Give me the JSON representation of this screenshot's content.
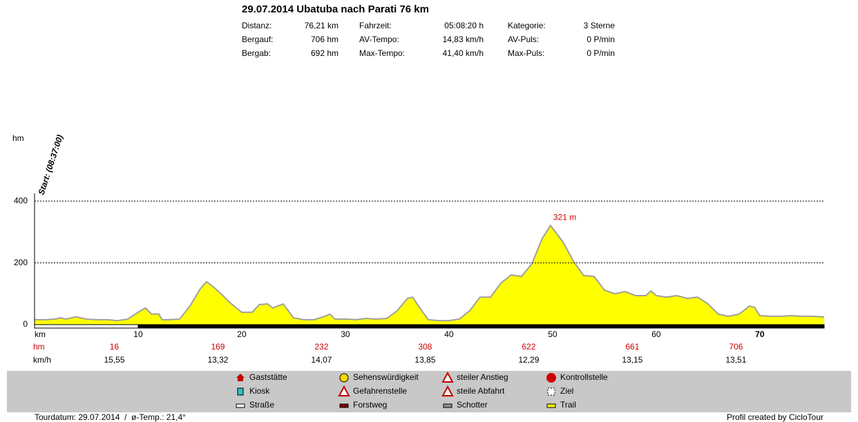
{
  "header": {
    "title": "29.07.2014 Ubatuba nach Parati 76 km",
    "stats": [
      [
        [
          "Distanz:",
          "76,21 km"
        ],
        [
          "Fahrzeit:",
          "05:08:20 h"
        ],
        [
          "Kategorie:",
          "3 Sterne"
        ]
      ],
      [
        [
          "Bergauf:",
          "706 hm"
        ],
        [
          "AV-Tempo:",
          "14,83 km/h"
        ],
        [
          "AV-Puls:",
          "0 P/min"
        ]
      ],
      [
        [
          "Bergab:",
          "692 hm"
        ],
        [
          "Max-Tempo:",
          "41,40 km/h"
        ],
        [
          "Max-Puls:",
          "0 P/min"
        ]
      ]
    ]
  },
  "chart_data": {
    "type": "area",
    "y_label": "hm",
    "x_label": "km",
    "start_label": "Start: (08:37:00)",
    "peak_annotation": "321 m",
    "color": "#ffff00",
    "line_color": "#a0a0a0",
    "x": [
      0,
      1,
      2,
      2.5,
      3,
      4,
      5,
      6,
      7,
      8,
      9,
      10,
      10.7,
      11.3,
      12,
      12.3,
      13,
      14,
      15,
      16,
      16.6,
      17.3,
      18,
      19,
      20,
      21,
      21.7,
      22.5,
      23,
      24,
      25,
      26,
      27,
      28,
      28.5,
      29,
      30,
      31,
      32,
      33,
      34,
      35,
      36,
      36.5,
      37,
      38,
      39,
      40,
      41,
      42,
      43,
      44,
      45,
      46,
      47,
      48,
      49,
      49.8,
      51,
      52,
      53,
      54,
      55,
      56,
      57,
      58,
      59,
      59.5,
      60,
      61,
      62,
      63,
      64,
      65,
      66,
      67,
      68,
      69,
      69.5,
      70,
      71,
      72,
      73,
      74,
      75,
      76.21
    ],
    "values": [
      16,
      16,
      18,
      22,
      18,
      25,
      18,
      16,
      16,
      13,
      18,
      40,
      54,
      34,
      34,
      16,
      16,
      18,
      60,
      116,
      139,
      121,
      100,
      67,
      40,
      40,
      65,
      67,
      54,
      67,
      22,
      16,
      16,
      27,
      34,
      18,
      18,
      16,
      20,
      18,
      20,
      45,
      85,
      89,
      63,
      16,
      13,
      13,
      18,
      45,
      89,
      89,
      134,
      161,
      156,
      197,
      279,
      321,
      268,
      206,
      159,
      156,
      112,
      100,
      107,
      94,
      94,
      109,
      94,
      89,
      94,
      85,
      89,
      67,
      34,
      27,
      34,
      60,
      56,
      29,
      27,
      27,
      29,
      27,
      27,
      25
    ],
    "xlim": [
      0,
      76.21
    ],
    "ylim": [
      0,
      425
    ],
    "xticks": [
      10,
      20,
      30,
      40,
      50,
      60,
      70
    ],
    "yticks": [
      0,
      200,
      400
    ],
    "grid": true,
    "climb": {
      "label": "hm",
      "values": [
        16,
        169,
        232,
        308,
        622,
        661,
        706
      ]
    },
    "speed": {
      "label": "km/h",
      "values": [
        15.55,
        13.32,
        14.07,
        13.85,
        12.29,
        13.15,
        13.51
      ],
      "value_labels": [
        "15,55",
        "13,32",
        "14,07",
        "13,85",
        "12,29",
        "13,15",
        "13,51"
      ]
    }
  },
  "legend": [
    [
      "Gaststätte",
      "Kiosk",
      "Straße"
    ],
    [
      "Sehenswürdigkeit",
      "Gefahrenstelle",
      "Forstweg"
    ],
    [
      "steiler Anstieg",
      "steile Abfahrt",
      "Schotter"
    ],
    [
      "Kontrollstelle",
      "Ziel",
      "Trail"
    ]
  ],
  "footer": {
    "left": "Tourdatum: 29.07.2014  /  ø-Temp.: 21,4°",
    "right": "Profil created by CicloTour"
  }
}
